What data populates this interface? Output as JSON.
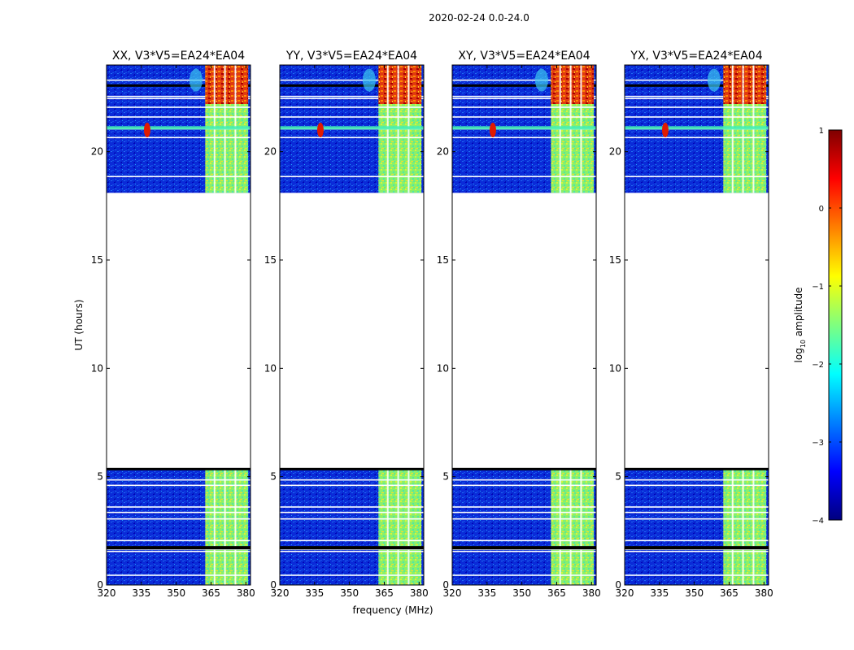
{
  "chart_data": {
    "type": "heatmap",
    "title": "2020-02-24 0.0-24.0",
    "xlabel": "frequency (MHz)",
    "ylabel": "UT (hours)",
    "xlim": [
      320,
      382
    ],
    "ylim": [
      0,
      24
    ],
    "xticks": [
      "320",
      "335",
      "350",
      "365",
      "380"
    ],
    "yticks": [
      "0",
      "5",
      "10",
      "15",
      "20"
    ],
    "data_coverage_hours": [
      [
        0,
        5.4
      ],
      [
        18.1,
        24
      ]
    ],
    "panels": [
      {
        "name": "XX",
        "title": "XX, V3*V5=EA24*EA04"
      },
      {
        "name": "YY",
        "title": "YY, V3*V5=EA24*EA04"
      },
      {
        "name": "XY",
        "title": "XY, V3*V5=EA24*EA04"
      },
      {
        "name": "YX",
        "title": "YX, V3*V5=EA24*EA04"
      }
    ],
    "colorbar": {
      "label": "log10 amplitude",
      "label_main": "log",
      "label_sub": "10",
      "label_rest": " amplitude",
      "range": [
        -4,
        1
      ],
      "ticks": [
        "1",
        "0",
        "−1",
        "−2",
        "−3",
        "−4"
      ],
      "colormap": "jet",
      "colors": [
        "#00007f",
        "#0000ff",
        "#007fff",
        "#00ffff",
        "#7fff7f",
        "#ffff00",
        "#ff7f00",
        "#ff0000",
        "#7f0000"
      ]
    }
  }
}
